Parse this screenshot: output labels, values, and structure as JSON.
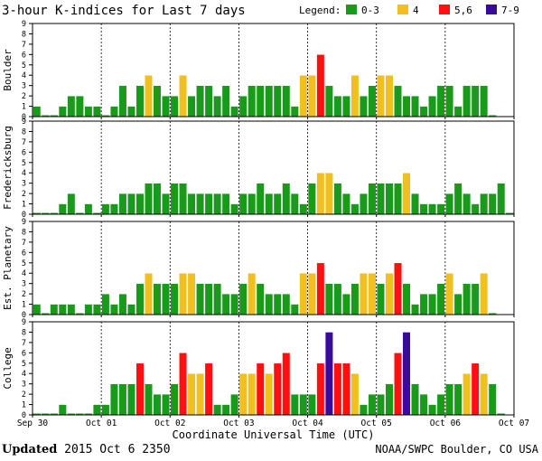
{
  "title": "3-hour K-indices for Last 7 days",
  "legend": {
    "label": "Legend:",
    "items": [
      {
        "label": "0-3",
        "color": "#1a9a1a"
      },
      {
        "label": "4",
        "color": "#f0c020"
      },
      {
        "label": "5,6",
        "color": "#ff1010"
      },
      {
        "label": "7-9",
        "color": "#3a0a9a"
      }
    ]
  },
  "footer": {
    "updated_label": "Updated",
    "updated_value": "2015 Oct  6 2350",
    "credit": "NOAA/SWPC Boulder, CO USA"
  },
  "chart_data": {
    "type": "bar",
    "title": "3-hour K-indices for Last 7 days",
    "xlabel": "Coordinate Universal Time (UTC)",
    "x_ticks": [
      "Sep 30",
      "Oct 01",
      "Oct 02",
      "Oct 03",
      "Oct 04",
      "Oct 05",
      "Oct 06",
      "Oct 07"
    ],
    "y_ticks": [
      "0",
      "1",
      "2",
      "3",
      "4",
      "5",
      "6",
      "7",
      "8",
      "9"
    ],
    "ylim": [
      0,
      9
    ],
    "bins_per_day": 8,
    "color_scale": [
      {
        "range": "0-3",
        "color": "#1a9a1a"
      },
      {
        "range": "4",
        "color": "#f0c020"
      },
      {
        "range": "5,6",
        "color": "#ff1010"
      },
      {
        "range": "7-9",
        "color": "#3a0a9a"
      }
    ],
    "panels": [
      {
        "name": "Boulder",
        "values": [
          1,
          0,
          0,
          1,
          2,
          2,
          1,
          1,
          0,
          1,
          3,
          1,
          3,
          4,
          3,
          2,
          2,
          4,
          2,
          3,
          3,
          2,
          3,
          1,
          2,
          3,
          3,
          3,
          3,
          3,
          1,
          4,
          4,
          6,
          3,
          2,
          2,
          4,
          2,
          3,
          4,
          4,
          3,
          2,
          2,
          1,
          2,
          3,
          3,
          1,
          3,
          3,
          3,
          0
        ]
      },
      {
        "name": "Fredericksburg",
        "values": [
          0,
          0,
          0,
          1,
          2,
          0,
          1,
          0,
          1,
          1,
          2,
          2,
          2,
          3,
          3,
          2,
          3,
          3,
          2,
          2,
          2,
          2,
          2,
          1,
          2,
          2,
          3,
          2,
          2,
          3,
          2,
          1,
          3,
          4,
          4,
          3,
          2,
          1,
          2,
          3,
          3,
          3,
          3,
          4,
          2,
          1,
          1,
          1,
          2,
          3,
          2,
          1,
          2,
          2,
          3,
          0
        ]
      },
      {
        "name": "Est. Planetary",
        "values": [
          1,
          0,
          1,
          1,
          1,
          0,
          1,
          1,
          2,
          1,
          2,
          1,
          3,
          4,
          3,
          3,
          3,
          4,
          4,
          3,
          3,
          3,
          2,
          2,
          3,
          4,
          3,
          2,
          2,
          2,
          1,
          4,
          4,
          5,
          3,
          3,
          2,
          3,
          4,
          4,
          3,
          4,
          5,
          3,
          1,
          2,
          2,
          3,
          4,
          2,
          3,
          3,
          4,
          0
        ]
      },
      {
        "name": "College",
        "values": [
          0,
          0,
          0,
          1,
          0,
          0,
          0,
          1,
          1,
          3,
          3,
          3,
          5,
          3,
          2,
          2,
          3,
          6,
          4,
          4,
          5,
          1,
          1,
          2,
          4,
          4,
          5,
          4,
          5,
          6,
          2,
          2,
          2,
          5,
          8,
          5,
          5,
          4,
          1,
          2,
          2,
          3,
          6,
          8,
          3,
          2,
          1,
          2,
          3,
          3,
          4,
          5,
          4,
          3,
          0
        ]
      }
    ]
  }
}
